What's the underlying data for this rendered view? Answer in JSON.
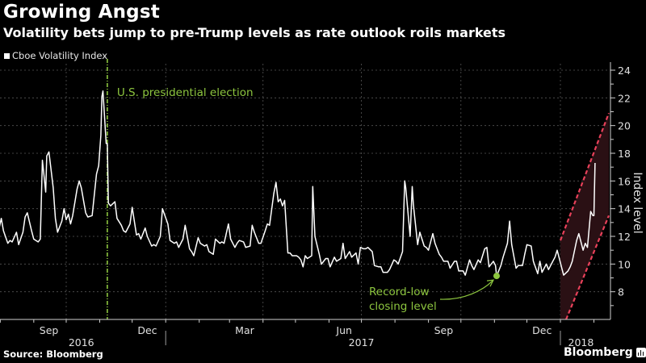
{
  "header": {
    "title": "Growing Angst",
    "subtitle": "Volatility bets jump to pre-Trump levels as rate outlook roils markets"
  },
  "footer": {
    "source": "Source: Bloomberg",
    "brand": "Bloomberg"
  },
  "colors": {
    "background": "#000000",
    "series": "#ffffff",
    "annotation": "#8dc63f",
    "channel_line": "#e8415a",
    "channel_fill": "#2a1014",
    "grid": "#555555"
  },
  "chart_data": {
    "type": "line",
    "title": "Growing Angst",
    "subtitle": "Volatility bets jump to pre-Trump levels as rate outlook roils markets",
    "legend": [
      {
        "name": "Cboe Volatility Index",
        "placement": "top-left"
      }
    ],
    "xlabel": "",
    "ylabel": "Index level",
    "ylim": [
      6,
      24
    ],
    "yticks": [
      8,
      10,
      12,
      14,
      16,
      18,
      20,
      22,
      24
    ],
    "grid": true,
    "x_range": [
      "2016-07-25",
      "2018-02-10"
    ],
    "x_month_labels": [
      {
        "label": "Sep",
        "date": "2016-09-15"
      },
      {
        "label": "Dec",
        "date": "2016-12-15"
      },
      {
        "label": "Mar",
        "date": "2017-03-15"
      },
      {
        "label": "Jun",
        "date": "2017-06-15"
      },
      {
        "label": "Sep",
        "date": "2017-09-15"
      },
      {
        "label": "Dec",
        "date": "2017-12-15"
      }
    ],
    "x_year_labels": [
      {
        "label": "2016",
        "date": "2016-10-15"
      },
      {
        "label": "2017",
        "date": "2017-07-01"
      },
      {
        "label": "2018",
        "date": "2018-01-20"
      }
    ],
    "x_gridlines": [
      "2016-10-01",
      "2017-01-01",
      "2017-04-01",
      "2017-07-01",
      "2017-10-01",
      "2018-01-01"
    ],
    "year_dividers": [
      "2017-01-01",
      "2018-01-01"
    ],
    "series": [
      {
        "name": "Cboe Volatility Index",
        "points": [
          [
            "2016-07-25",
            13.2
          ],
          [
            "2016-07-27",
            12.8
          ],
          [
            "2016-07-29",
            11.9
          ],
          [
            "2016-08-02",
            13.3
          ],
          [
            "2016-08-04",
            12.4
          ],
          [
            "2016-08-08",
            11.5
          ],
          [
            "2016-08-10",
            11.7
          ],
          [
            "2016-08-12",
            11.6
          ],
          [
            "2016-08-16",
            12.3
          ],
          [
            "2016-08-18",
            11.4
          ],
          [
            "2016-08-22",
            12.3
          ],
          [
            "2016-08-24",
            13.4
          ],
          [
            "2016-08-26",
            13.7
          ],
          [
            "2016-08-30",
            12.4
          ],
          [
            "2016-09-01",
            11.8
          ],
          [
            "2016-09-05",
            11.6
          ],
          [
            "2016-09-07",
            11.8
          ],
          [
            "2016-09-09",
            17.5
          ],
          [
            "2016-09-12",
            15.2
          ],
          [
            "2016-09-13",
            17.8
          ],
          [
            "2016-09-15",
            18.1
          ],
          [
            "2016-09-19",
            15.5
          ],
          [
            "2016-09-21",
            13.3
          ],
          [
            "2016-09-23",
            12.3
          ],
          [
            "2016-09-27",
            13.1
          ],
          [
            "2016-09-29",
            14.0
          ],
          [
            "2016-10-01",
            13.2
          ],
          [
            "2016-10-03",
            13.6
          ],
          [
            "2016-10-05",
            12.9
          ],
          [
            "2016-10-07",
            13.5
          ],
          [
            "2016-10-11",
            15.4
          ],
          [
            "2016-10-13",
            16.0
          ],
          [
            "2016-10-15",
            15.5
          ],
          [
            "2016-10-19",
            13.7
          ],
          [
            "2016-10-21",
            13.4
          ],
          [
            "2016-10-25",
            13.5
          ],
          [
            "2016-10-27",
            15.0
          ],
          [
            "2016-10-29",
            16.5
          ],
          [
            "2016-10-31",
            17.1
          ],
          [
            "2016-11-02",
            19.3
          ],
          [
            "2016-11-03",
            22.1
          ],
          [
            "2016-11-04",
            22.5
          ],
          [
            "2016-11-07",
            18.7
          ],
          [
            "2016-11-08",
            18.7
          ],
          [
            "2016-11-09",
            14.4
          ],
          [
            "2016-11-11",
            14.2
          ],
          [
            "2016-11-15",
            14.5
          ],
          [
            "2016-11-17",
            13.3
          ],
          [
            "2016-11-21",
            12.8
          ],
          [
            "2016-11-23",
            12.4
          ],
          [
            "2016-11-25",
            12.3
          ],
          [
            "2016-11-29",
            12.9
          ],
          [
            "2016-12-01",
            14.1
          ],
          [
            "2016-12-05",
            12.1
          ],
          [
            "2016-12-07",
            12.2
          ],
          [
            "2016-12-09",
            11.8
          ],
          [
            "2016-12-13",
            12.6
          ],
          [
            "2016-12-15",
            12.0
          ],
          [
            "2016-12-19",
            11.3
          ],
          [
            "2016-12-21",
            11.4
          ],
          [
            "2016-12-23",
            11.3
          ],
          [
            "2016-12-27",
            12.0
          ],
          [
            "2016-12-29",
            14.0
          ],
          [
            "2017-01-03",
            12.9
          ],
          [
            "2017-01-05",
            11.7
          ],
          [
            "2017-01-09",
            11.5
          ],
          [
            "2017-01-11",
            11.6
          ],
          [
            "2017-01-13",
            11.2
          ],
          [
            "2017-01-17",
            11.8
          ],
          [
            "2017-01-19",
            12.8
          ],
          [
            "2017-01-23",
            11.1
          ],
          [
            "2017-01-25",
            10.9
          ],
          [
            "2017-01-27",
            10.6
          ],
          [
            "2017-01-31",
            11.9
          ],
          [
            "2017-02-02",
            11.5
          ],
          [
            "2017-02-06",
            11.3
          ],
          [
            "2017-02-08",
            11.4
          ],
          [
            "2017-02-10",
            10.9
          ],
          [
            "2017-02-14",
            10.7
          ],
          [
            "2017-02-16",
            11.8
          ],
          [
            "2017-02-20",
            11.5
          ],
          [
            "2017-02-22",
            11.6
          ],
          [
            "2017-02-24",
            11.5
          ],
          [
            "2017-02-28",
            12.9
          ],
          [
            "2017-03-02",
            11.8
          ],
          [
            "2017-03-06",
            11.2
          ],
          [
            "2017-03-08",
            11.5
          ],
          [
            "2017-03-10",
            11.7
          ],
          [
            "2017-03-14",
            11.6
          ],
          [
            "2017-03-16",
            11.2
          ],
          [
            "2017-03-20",
            11.3
          ],
          [
            "2017-03-22",
            12.8
          ],
          [
            "2017-03-24",
            12.3
          ],
          [
            "2017-03-28",
            11.5
          ],
          [
            "2017-03-30",
            11.5
          ],
          [
            "2017-04-03",
            12.4
          ],
          [
            "2017-04-05",
            12.9
          ],
          [
            "2017-04-07",
            12.8
          ],
          [
            "2017-04-11",
            15.1
          ],
          [
            "2017-04-13",
            15.9
          ],
          [
            "2017-04-15",
            14.5
          ],
          [
            "2017-04-17",
            14.7
          ],
          [
            "2017-04-19",
            14.2
          ],
          [
            "2017-04-21",
            14.6
          ],
          [
            "2017-04-24",
            10.8
          ],
          [
            "2017-04-26",
            10.8
          ],
          [
            "2017-04-28",
            10.6
          ],
          [
            "2017-05-02",
            10.6
          ],
          [
            "2017-05-04",
            10.5
          ],
          [
            "2017-05-06",
            10.3
          ],
          [
            "2017-05-08",
            9.8
          ],
          [
            "2017-05-10",
            10.6
          ],
          [
            "2017-05-12",
            10.4
          ],
          [
            "2017-05-16",
            10.6
          ],
          [
            "2017-05-17",
            15.6
          ],
          [
            "2017-05-19",
            12.0
          ],
          [
            "2017-05-23",
            10.7
          ],
          [
            "2017-05-25",
            9.99
          ],
          [
            "2017-05-29",
            10.4
          ],
          [
            "2017-05-31",
            10.4
          ],
          [
            "2017-06-02",
            9.8
          ],
          [
            "2017-06-06",
            10.5
          ],
          [
            "2017-06-08",
            10.2
          ],
          [
            "2017-06-12",
            10.4
          ],
          [
            "2017-06-14",
            11.5
          ],
          [
            "2017-06-16",
            10.4
          ],
          [
            "2017-06-20",
            10.9
          ],
          [
            "2017-06-22",
            10.5
          ],
          [
            "2017-06-26",
            10.8
          ],
          [
            "2017-06-28",
            10.0
          ],
          [
            "2017-06-30",
            11.2
          ],
          [
            "2017-07-03",
            11.1
          ],
          [
            "2017-07-05",
            11.1
          ],
          [
            "2017-07-07",
            11.2
          ],
          [
            "2017-07-11",
            10.9
          ],
          [
            "2017-07-13",
            9.9
          ],
          [
            "2017-07-17",
            9.8
          ],
          [
            "2017-07-19",
            9.8
          ],
          [
            "2017-07-21",
            9.4
          ],
          [
            "2017-07-25",
            9.4
          ],
          [
            "2017-07-27",
            9.6
          ],
          [
            "2017-07-31",
            10.3
          ],
          [
            "2017-08-02",
            10.2
          ],
          [
            "2017-08-04",
            10.0
          ],
          [
            "2017-08-08",
            10.9
          ],
          [
            "2017-08-10",
            16.0
          ],
          [
            "2017-08-11",
            15.5
          ],
          [
            "2017-08-15",
            12.0
          ],
          [
            "2017-08-17",
            15.6
          ],
          [
            "2017-08-18",
            14.3
          ],
          [
            "2017-08-22",
            11.4
          ],
          [
            "2017-08-24",
            12.3
          ],
          [
            "2017-08-28",
            11.3
          ],
          [
            "2017-08-30",
            11.2
          ],
          [
            "2017-09-01",
            11.0
          ],
          [
            "2017-09-05",
            12.2
          ],
          [
            "2017-09-07",
            11.5
          ],
          [
            "2017-09-11",
            10.7
          ],
          [
            "2017-09-13",
            10.5
          ],
          [
            "2017-09-15",
            10.2
          ],
          [
            "2017-09-19",
            10.2
          ],
          [
            "2017-09-21",
            9.7
          ],
          [
            "2017-09-25",
            10.2
          ],
          [
            "2017-09-27",
            10.2
          ],
          [
            "2017-09-29",
            9.5
          ],
          [
            "2017-10-03",
            9.5
          ],
          [
            "2017-10-05",
            9.2
          ],
          [
            "2017-10-09",
            10.3
          ],
          [
            "2017-10-11",
            9.9
          ],
          [
            "2017-10-13",
            9.6
          ],
          [
            "2017-10-17",
            10.3
          ],
          [
            "2017-10-19",
            10.1
          ],
          [
            "2017-10-23",
            11.1
          ],
          [
            "2017-10-25",
            11.2
          ],
          [
            "2017-10-27",
            9.8
          ],
          [
            "2017-10-31",
            10.2
          ],
          [
            "2017-11-02",
            9.9
          ],
          [
            "2017-11-03",
            9.14
          ],
          [
            "2017-11-07",
            9.9
          ],
          [
            "2017-11-09",
            10.5
          ],
          [
            "2017-11-13",
            11.5
          ],
          [
            "2017-11-15",
            13.1
          ],
          [
            "2017-11-17",
            11.4
          ],
          [
            "2017-11-21",
            9.7
          ],
          [
            "2017-11-23",
            9.9
          ],
          [
            "2017-11-27",
            9.9
          ],
          [
            "2017-11-29",
            10.7
          ],
          [
            "2017-12-01",
            11.4
          ],
          [
            "2017-12-05",
            11.3
          ],
          [
            "2017-12-07",
            10.2
          ],
          [
            "2017-12-11",
            9.3
          ],
          [
            "2017-12-13",
            10.2
          ],
          [
            "2017-12-15",
            9.4
          ],
          [
            "2017-12-19",
            10.0
          ],
          [
            "2017-12-21",
            9.6
          ],
          [
            "2017-12-25",
            10.2
          ],
          [
            "2017-12-27",
            10.5
          ],
          [
            "2017-12-29",
            11.0
          ],
          [
            "2018-01-02",
            9.8
          ],
          [
            "2018-01-04",
            9.2
          ],
          [
            "2018-01-08",
            9.5
          ],
          [
            "2018-01-10",
            9.8
          ],
          [
            "2018-01-12",
            10.2
          ],
          [
            "2018-01-16",
            11.7
          ],
          [
            "2018-01-18",
            12.2
          ],
          [
            "2018-01-22",
            11.0
          ],
          [
            "2018-01-24",
            11.5
          ],
          [
            "2018-01-26",
            11.2
          ],
          [
            "2018-01-29",
            13.8
          ],
          [
            "2018-01-31",
            13.5
          ],
          [
            "2018-02-01",
            13.5
          ],
          [
            "2018-02-02",
            17.3
          ]
        ]
      }
    ],
    "annotations": [
      {
        "type": "vertical-line",
        "date": "2016-11-08",
        "label": "U.S. presidential election",
        "color": "#8dc63f"
      },
      {
        "type": "point",
        "date": "2017-11-03",
        "value": 9.14,
        "label_lines": [
          "Record-low",
          "closing level"
        ],
        "color": "#8dc63f"
      },
      {
        "type": "channel",
        "start_date": "2018-01-01",
        "end_date": "2018-02-10",
        "upper": [
          11.7,
          20.9
        ],
        "lower": [
          5.0,
          13.5
        ],
        "color": "#e8415a"
      }
    ]
  }
}
